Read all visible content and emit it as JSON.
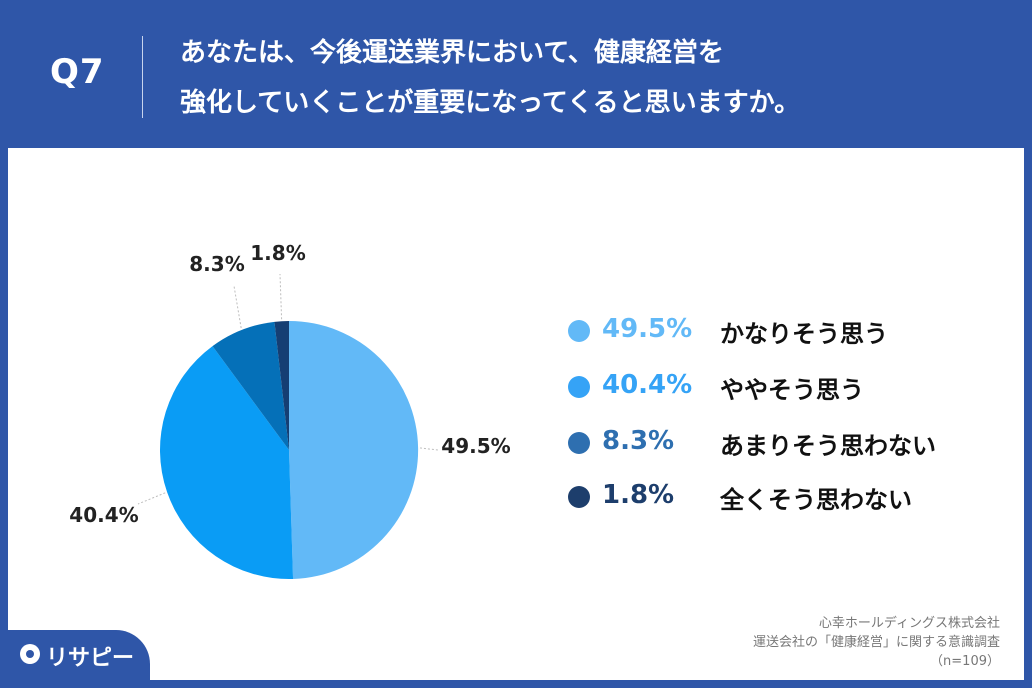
{
  "header": {
    "qnum": "Q7",
    "question_line1": "あなたは、今後運送業界において、健康経営を",
    "question_line2": "強化していくことが重要になってくると思いますか。"
  },
  "chart_data": {
    "type": "pie",
    "categories": [
      "かなりそう思う",
      "ややそう思う",
      "あまりそう思わない",
      "全くそう思わない"
    ],
    "values": [
      49.5,
      40.4,
      8.3,
      1.8
    ],
    "labels": [
      "49.5%",
      "40.4%",
      "8.3%",
      "1.8%"
    ],
    "colors": [
      "#62b9f7",
      "#0a9cf5",
      "#0570b8",
      "#153e73"
    ],
    "legend_pct_colors": [
      "#62b9f7",
      "#35a3f6",
      "#2e6fb0",
      "#1d3e6c"
    ],
    "legend_dot_colors": [
      "#62b9f7",
      "#35a3f6",
      "#2e6fb0",
      "#1d3e6c"
    ],
    "legend_placement": "right"
  },
  "legend": {
    "items": [
      {
        "pct": "49.5%",
        "label": "かなりそう思う"
      },
      {
        "pct": "40.4%",
        "label": "ややそう思う"
      },
      {
        "pct": "8.3%",
        "label": "あまりそう思わない"
      },
      {
        "pct": "1.8%",
        "label": "全くそう思わない"
      }
    ]
  },
  "source": {
    "line1": "心幸ホールディングス株式会社",
    "line2": "運送会社の「健康経営」に関する意識調査",
    "line3": "（n=109）"
  },
  "brand": {
    "name": "リサピー"
  },
  "colors": {
    "header_bg": "#2f56a8",
    "card_bg": "#ffffff"
  }
}
